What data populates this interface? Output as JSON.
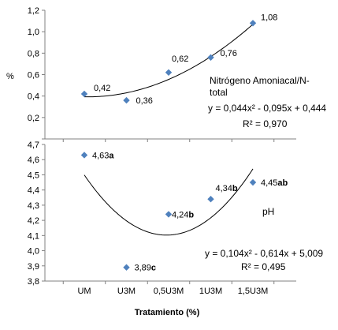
{
  "chart_data": [
    {
      "type": "scatter",
      "title": "",
      "ylabel": "%",
      "xlabel": "",
      "ylim": [
        0.0,
        1.2
      ],
      "y_ticks": [
        "0,2",
        "0,4",
        "0,6",
        "0,8",
        "1,0",
        "1,2"
      ],
      "y_tick_values": [
        0.2,
        0.4,
        0.6,
        0.8,
        1.0,
        1.2
      ],
      "x": [
        1,
        2,
        3,
        4,
        5
      ],
      "series": [
        {
          "name": "Nitrógeno Amoniacal/N-total",
          "values": [
            0.42,
            0.36,
            0.62,
            0.76,
            1.08
          ],
          "point_labels": [
            "0,42",
            "0,36",
            "0,62",
            "0,76",
            "1,08"
          ],
          "color": "#4F81BD"
        }
      ],
      "trendline": {
        "type": "polynomial",
        "coefficients": [
          0.044,
          -0.095,
          0.444
        ],
        "equation": "y = 0,044x² - 0,095x + 0,444",
        "r2_text": "R² = 0,970"
      },
      "grid": false
    },
    {
      "type": "scatter",
      "title": "",
      "ylabel": "",
      "xlabel": "Tratamiento (%)",
      "ylim": [
        3.8,
        4.7
      ],
      "y_ticks": [
        "3,8",
        "3,9",
        "4,0",
        "4,1",
        "4,2",
        "4,3",
        "4,4",
        "4,5",
        "4,6",
        "4,7"
      ],
      "y_tick_values": [
        3.8,
        3.9,
        4.0,
        4.1,
        4.2,
        4.3,
        4.4,
        4.5,
        4.6,
        4.7
      ],
      "categories": [
        "UM",
        "U3M",
        "0,5U3M",
        "1U3M",
        "1,5U3M"
      ],
      "x": [
        1,
        2,
        3,
        4,
        5
      ],
      "series": [
        {
          "name": "pH",
          "values": [
            4.63,
            3.89,
            4.24,
            4.34,
            4.45
          ],
          "point_labels": [
            "4,63a",
            "3,89c",
            "4,24b",
            "4,34b",
            "4,45ab"
          ],
          "color": "#4F81BD"
        }
      ],
      "trendline": {
        "type": "polynomial",
        "coefficients": [
          0.104,
          -0.614,
          5.009
        ],
        "equation": "y = 0,104x² - 0,614x + 5,009",
        "r2_text": "R² = 0,495"
      },
      "grid": false
    }
  ]
}
